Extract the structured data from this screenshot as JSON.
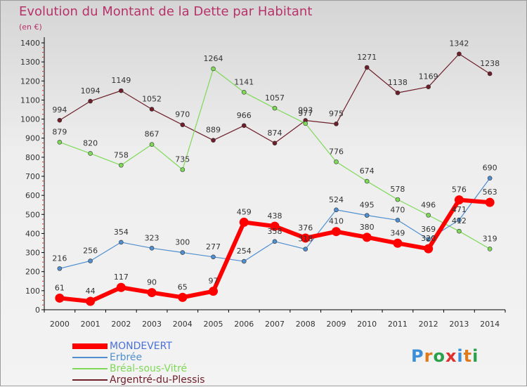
{
  "header": {
    "title": "Evolution du Montant de la Dette par Habitant",
    "unit": "(en €)"
  },
  "logo": {
    "letters": [
      "P",
      "r",
      "o",
      "x",
      "i",
      "t",
      "i"
    ],
    "colors": [
      "#3a8fd8",
      "#e07a1e",
      "#2aa04a",
      "#e0302e",
      "#3a8fd8",
      "#e07a1e",
      "#2aa04a"
    ]
  },
  "chart_data": {
    "type": "line",
    "title": "Evolution du Montant de la Dette par Habitant",
    "subtitle": "(en €)",
    "x": [
      "2000",
      "2001",
      "2002",
      "2003",
      "2004",
      "2005",
      "2006",
      "2007",
      "2008",
      "2009",
      "2010",
      "2011",
      "2012",
      "2013",
      "2014"
    ],
    "yticks": [
      0,
      100,
      200,
      300,
      400,
      500,
      600,
      700,
      800,
      900,
      1000,
      1100,
      1200,
      1300,
      1400
    ],
    "ylim": [
      0,
      1400
    ],
    "grid": false,
    "legend_position": "bottom-left",
    "series": [
      {
        "name": "MONDEVERT",
        "color": "#ff0000",
        "values": [
          61,
          44,
          117,
          90,
          65,
          97,
          459,
          438,
          376,
          410,
          380,
          349,
          320,
          576,
          563
        ]
      },
      {
        "name": "Erbrée",
        "color": "#4f8fcf",
        "values": [
          216,
          256,
          354,
          323,
          300,
          277,
          254,
          358,
          318,
          524,
          495,
          470,
          369,
          471,
          690
        ]
      },
      {
        "name": "Bréal-sous-Vitré",
        "color": "#7ed957",
        "values": [
          879,
          820,
          758,
          867,
          735,
          1264,
          1141,
          1057,
          977,
          776,
          674,
          578,
          496,
          412,
          319
        ]
      },
      {
        "name": "Argentré-du-Plessis",
        "color": "#6e1f2a",
        "values": [
          994,
          1094,
          1149,
          1052,
          970,
          889,
          966,
          874,
          993,
          975,
          1271,
          1138,
          1169,
          1342,
          1238
        ]
      }
    ]
  }
}
